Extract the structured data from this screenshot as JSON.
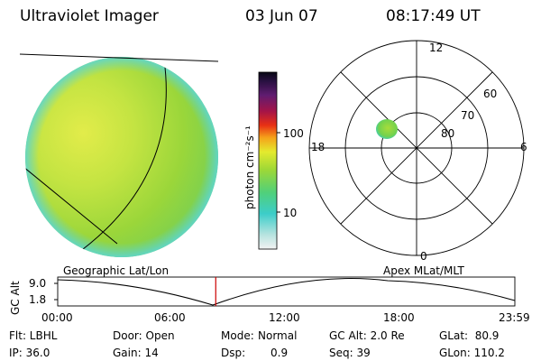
{
  "header": {
    "title": "Ultraviolet Imager",
    "date": "03 Jun 07",
    "time": "08:17:49 UT"
  },
  "colorbar": {
    "unit_label": "photon cm⁻²s⁻¹",
    "ticks": [
      "100",
      "10"
    ],
    "scale": "log"
  },
  "polar_plot": {
    "mlt_labels": [
      "12",
      "18",
      "6",
      "0"
    ],
    "mlat_labels": [
      "60",
      "70",
      "80"
    ]
  },
  "captions": {
    "left": "Geographic Lat/Lon",
    "right": "Apex MLat/MLT"
  },
  "altitude_plot": {
    "ylabel": "GC Alt",
    "yticks": [
      "9.0",
      "1.8"
    ],
    "xticks": [
      "00:00",
      "06:00",
      "12:00",
      "18:00",
      "23:59"
    ],
    "current_time_fraction": 0.3457
  },
  "status": {
    "flt": "Flt: LBHL",
    "ip": "IP: 36.0",
    "door": "Door: Open",
    "gain": "Gain: 14",
    "mode_label": "Mode:",
    "mode_value": "Normal",
    "dsp_label": "Dsp:",
    "dsp_value": "0.9",
    "gc_alt": "GC Alt: 2.0 Re",
    "seq": "Seq: 39",
    "glat": "GLat:  80.9",
    "glon": "GLon: 110.2"
  },
  "colors": {
    "disk_main": "#9ad63a",
    "disk_bright": "#d8e84a",
    "disk_edge": "#5ed6d0",
    "marker": "#cc0000"
  }
}
